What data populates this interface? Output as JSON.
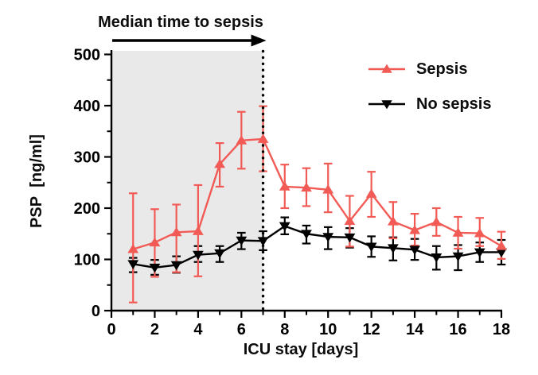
{
  "chart_data": {
    "type": "line",
    "title": "",
    "xlabel": "ICU stay [days]",
    "ylabel": "PSP [ng/ml]",
    "xlim": [
      0,
      18
    ],
    "ylim": [
      0,
      500
    ],
    "x_major_ticks": [
      0,
      2,
      4,
      6,
      8,
      10,
      12,
      14,
      16,
      18
    ],
    "x_minor_ticks": [
      1,
      3,
      5,
      7,
      9,
      11,
      13,
      15,
      17
    ],
    "y_major_ticks": [
      0,
      100,
      200,
      300,
      400,
      500
    ],
    "y_minor_ticks": [
      50,
      150,
      250,
      350,
      450
    ],
    "grid": false,
    "legend_position": "upper-right",
    "x": [
      1,
      2,
      3,
      4,
      5,
      6,
      7,
      8,
      9,
      10,
      11,
      12,
      13,
      14,
      15,
      16,
      17,
      18
    ],
    "series": [
      {
        "name": "Sepsis",
        "color": "#F25B55",
        "marker": "triangle-up",
        "values": [
          120,
          133,
          153,
          155,
          286,
          332,
          335,
          242,
          240,
          236,
          175,
          228,
          174,
          157,
          173,
          152,
          151,
          126
        ],
        "err_high": [
          229,
          198,
          207,
          245,
          327,
          388,
          399,
          285,
          278,
          287,
          224,
          271,
          212,
          189,
          200,
          183,
          181,
          154
        ],
        "err_low": [
          16,
          66,
          75,
          67,
          242,
          277,
          272,
          200,
          204,
          192,
          125,
          183,
          141,
          127,
          146,
          121,
          126,
          101
        ]
      },
      {
        "name": "No sepsis",
        "color": "#000000",
        "marker": "triangle-down",
        "values": [
          91,
          84,
          89,
          109,
          112,
          137,
          136,
          165,
          150,
          144,
          143,
          125,
          122,
          119,
          104,
          106,
          114,
          114
        ],
        "err_high": [
          103,
          99,
          106,
          126,
          126,
          152,
          155,
          182,
          166,
          163,
          161,
          145,
          143,
          140,
          126,
          128,
          133,
          138
        ],
        "err_low": [
          75,
          70,
          74,
          95,
          95,
          120,
          118,
          149,
          131,
          120,
          123,
          105,
          98,
          99,
          80,
          79,
          95,
          90
        ]
      }
    ],
    "shaded_region": {
      "x_start": 0,
      "x_end": 7,
      "color": "#E9E9E9"
    },
    "vline": {
      "x": 7,
      "style": "dotted",
      "color": "#000000"
    },
    "annotation_arrow": {
      "label": "Median time to sepsis",
      "x_start": 0,
      "x_end": 7
    }
  }
}
